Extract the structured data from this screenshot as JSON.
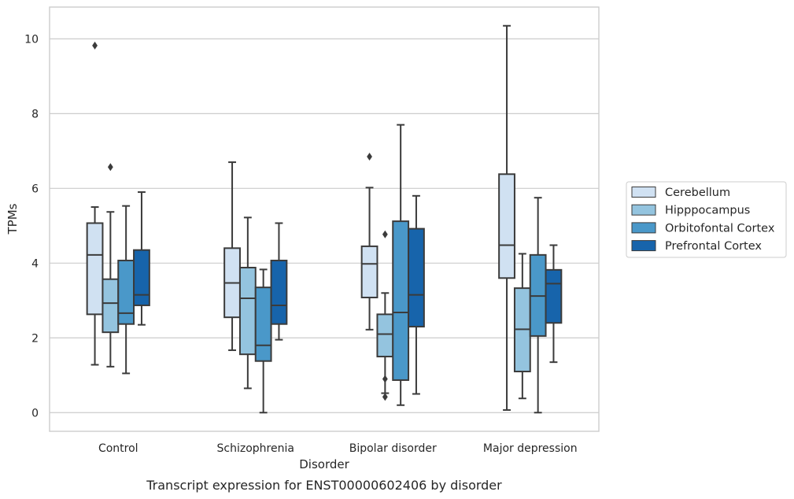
{
  "caption": "Transcript expression for ENST00000602406 by disorder",
  "chart_data": {
    "type": "boxplot",
    "title": "",
    "xlabel": "Disorder",
    "ylabel": "TPMs",
    "ylim": [
      -0.5,
      10.85
    ],
    "yticks": [
      0,
      2,
      4,
      6,
      8,
      10
    ],
    "grid": "horizontal",
    "legend_position": "right",
    "categories": [
      "Control",
      "Schizophrenia",
      "Bipolar disorder",
      "Major depression"
    ],
    "series": [
      {
        "name": "Cerebellum",
        "color": "#d0e1f2",
        "boxes": [
          {
            "whislo": 1.28,
            "q1": 2.63,
            "med": 4.22,
            "q3": 5.07,
            "whishi": 5.5,
            "fliers": [
              9.82
            ]
          },
          {
            "whislo": 1.67,
            "q1": 2.55,
            "med": 3.47,
            "q3": 4.4,
            "whishi": 6.7,
            "fliers": []
          },
          {
            "whislo": 2.22,
            "q1": 3.08,
            "med": 3.98,
            "q3": 4.45,
            "whishi": 6.02,
            "fliers": [
              6.85
            ]
          },
          {
            "whislo": 0.07,
            "q1": 3.6,
            "med": 4.48,
            "q3": 6.38,
            "whishi": 10.35,
            "fliers": []
          }
        ]
      },
      {
        "name": "Hipppocampus",
        "color": "#94c4df",
        "boxes": [
          {
            "whislo": 1.23,
            "q1": 2.15,
            "med": 2.93,
            "q3": 3.57,
            "whishi": 5.37,
            "fliers": [
              6.57
            ]
          },
          {
            "whislo": 0.65,
            "q1": 1.56,
            "med": 3.06,
            "q3": 3.88,
            "whishi": 5.22,
            "fliers": []
          },
          {
            "whislo": 0.52,
            "q1": 1.5,
            "med": 2.1,
            "q3": 2.63,
            "whishi": 3.2,
            "fliers": [
              0.9,
              0.42,
              4.77
            ]
          },
          {
            "whislo": 0.38,
            "q1": 1.1,
            "med": 2.23,
            "q3": 3.33,
            "whishi": 4.25,
            "fliers": []
          }
        ]
      },
      {
        "name": "Orbitofontal Cortex",
        "color": "#4a98c9",
        "boxes": [
          {
            "whislo": 1.05,
            "q1": 2.37,
            "med": 2.66,
            "q3": 4.07,
            "whishi": 5.53,
            "fliers": []
          },
          {
            "whislo": 0.0,
            "q1": 1.38,
            "med": 1.8,
            "q3": 3.35,
            "whishi": 3.83,
            "fliers": []
          },
          {
            "whislo": 0.2,
            "q1": 0.87,
            "med": 2.68,
            "q3": 5.12,
            "whishi": 7.7,
            "fliers": []
          },
          {
            "whislo": 0.0,
            "q1": 2.05,
            "med": 3.12,
            "q3": 4.22,
            "whishi": 5.75,
            "fliers": []
          }
        ]
      },
      {
        "name": "Prefrontal Cortex",
        "color": "#1764ab",
        "boxes": [
          {
            "whislo": 2.35,
            "q1": 2.87,
            "med": 3.15,
            "q3": 4.35,
            "whishi": 5.9,
            "fliers": []
          },
          {
            "whislo": 1.95,
            "q1": 2.37,
            "med": 2.87,
            "q3": 4.07,
            "whishi": 5.07,
            "fliers": []
          },
          {
            "whislo": 0.5,
            "q1": 2.3,
            "med": 3.15,
            "q3": 4.92,
            "whishi": 5.8,
            "fliers": []
          },
          {
            "whislo": 1.35,
            "q1": 2.4,
            "med": 3.45,
            "q3": 3.82,
            "whishi": 4.48,
            "fliers": []
          }
        ]
      }
    ]
  }
}
